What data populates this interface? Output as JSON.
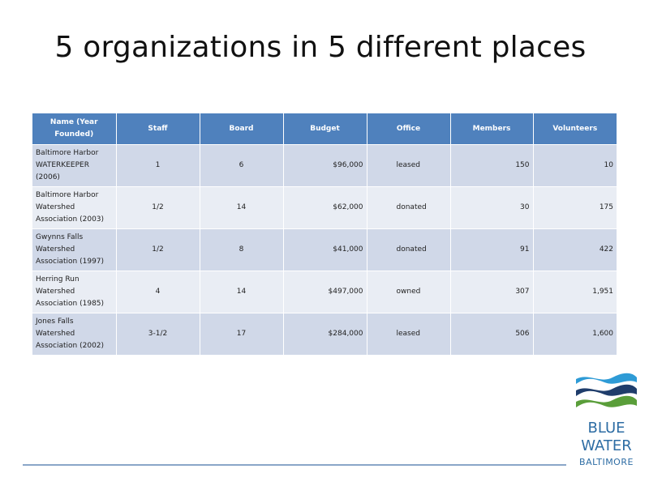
{
  "slide": {
    "title": "5 organizations in 5 different places"
  },
  "table": {
    "headers": {
      "name": "Name (Year Founded)",
      "staff": "Staff",
      "board": "Board",
      "budget": "Budget",
      "office": "Office",
      "members": "Members",
      "volunteers": "Volunteers"
    },
    "rows": [
      {
        "name": "Baltimore Harbor WATERKEEPER (2006)",
        "staff": "1",
        "board": "6",
        "budget": "$96,000",
        "office": "leased",
        "members": "150",
        "volunteers": "10"
      },
      {
        "name": "Baltimore Harbor Watershed Association (2003)",
        "staff": "1/2",
        "board": "14",
        "budget": "$62,000",
        "office": "donated",
        "members": "30",
        "volunteers": "175"
      },
      {
        "name": "Gwynns Falls Watershed Association (1997)",
        "staff": "1/2",
        "board": "8",
        "budget": "$41,000",
        "office": "donated",
        "members": "91",
        "volunteers": "422"
      },
      {
        "name": "Herring Run Watershed Association (1985)",
        "staff": "4",
        "board": "14",
        "budget": "$497,000",
        "office": "owned",
        "members": "307",
        "volunteers": "1,951"
      },
      {
        "name": "Jones Falls Watershed Association (2002)",
        "staff": "3-1/2",
        "board": "17",
        "budget": "$284,000",
        "office": "leased",
        "members": "506",
        "volunteers": "1,600"
      }
    ]
  },
  "logo": {
    "line1": "BLUE",
    "line2": "WATER",
    "line3": "BALTIMORE"
  },
  "colors": {
    "header_blue": "#4f81bd",
    "row_dark": "#d0d8e8",
    "row_light": "#e9edf4",
    "logo_blue": "#2e6da4",
    "logo_green": "#5a9e3a",
    "logo_navy": "#1f3d6b"
  }
}
